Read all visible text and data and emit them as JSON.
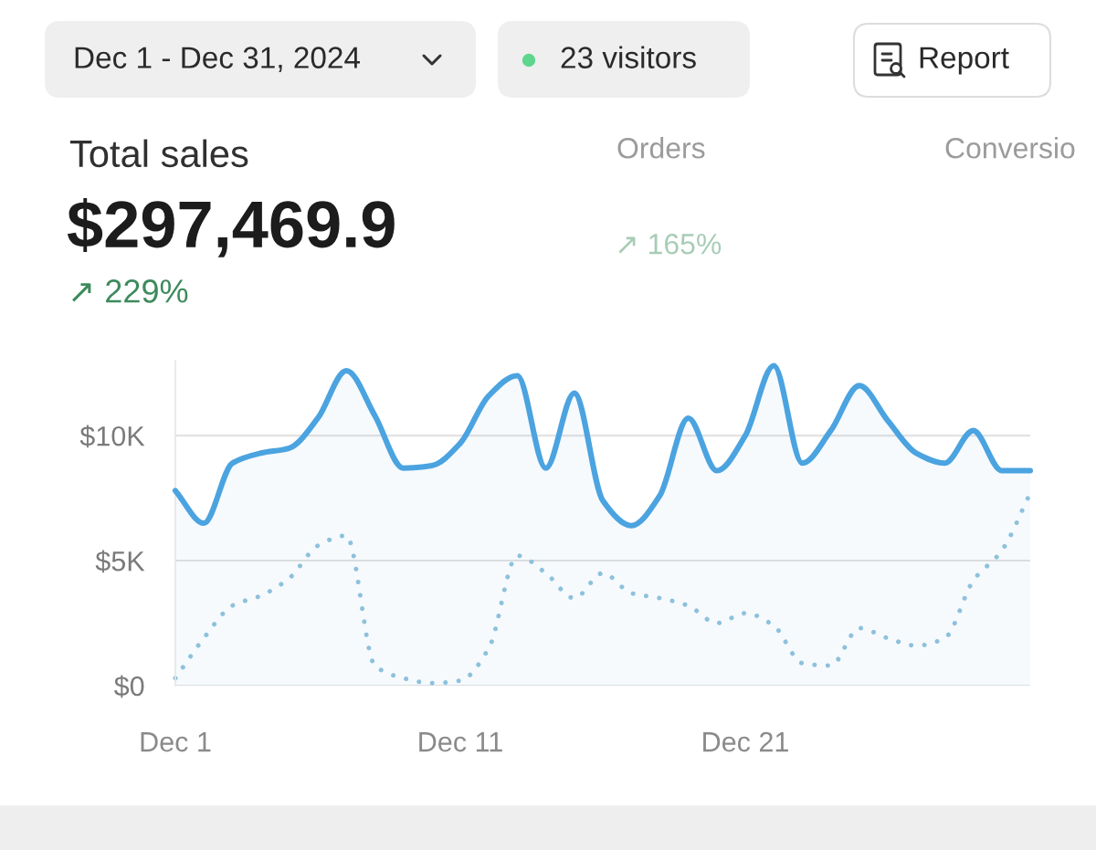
{
  "chart_data": {
    "type": "line",
    "title": "Total sales",
    "subtitle": "$297,469.9",
    "categories": [
      "Dec 1",
      null,
      null,
      null,
      null,
      null,
      null,
      null,
      null,
      null,
      "Dec 11",
      null,
      null,
      null,
      null,
      null,
      null,
      null,
      null,
      null,
      "Dec 21",
      null,
      null,
      null,
      null,
      null,
      null,
      null,
      null,
      null,
      null
    ],
    "series": [
      {
        "type": "area",
        "color": "#4ba3e0",
        "line_style": "solid",
        "values": [
          7800,
          6500,
          8900,
          9300,
          9500,
          10700,
          12600,
          10800,
          8700,
          8800,
          9700,
          11600,
          12400,
          8700,
          11700,
          7400,
          6400,
          7600,
          10700,
          8600,
          10000,
          12800,
          8900,
          10200,
          12000,
          10600,
          9300,
          8900,
          10200,
          8600,
          8600
        ]
      },
      {
        "color": "#8dc1dc",
        "line_style": "dotted",
        "values": [
          300,
          1900,
          3200,
          3600,
          4300,
          5600,
          6000,
          800,
          300,
          100,
          200,
          1500,
          5200,
          4500,
          3500,
          4500,
          3700,
          3500,
          3200,
          2500,
          2900,
          2400,
          900,
          800,
          2300,
          1900,
          1600,
          1900,
          4200,
          5400,
          7700
        ]
      }
    ],
    "ylim": [
      0,
      13000
    ],
    "yticks": [
      {
        "value": 0,
        "label": "$0"
      },
      {
        "value": 5000,
        "label": "$5K"
      },
      {
        "value": 10000,
        "label": "$10K"
      }
    ],
    "grid": "y",
    "legend": false,
    "marker": "none",
    "annotations": [
      "Dec 1 - Dec 31, 2024",
      "23 visitors",
      "Report",
      "↗ 229%",
      "Orders",
      "↗ 165%",
      "Conversio"
    ]
  }
}
